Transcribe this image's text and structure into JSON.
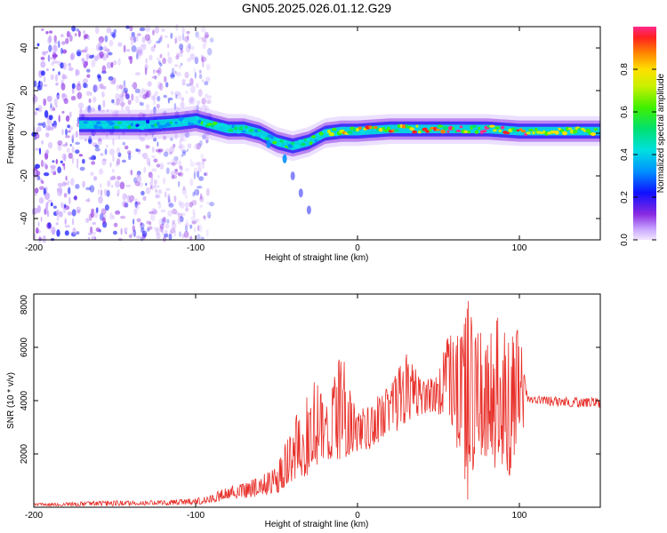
{
  "figure": {
    "title": "GN05.2025.026.01.12.G29"
  },
  "chart_data": [
    {
      "type": "heatmap",
      "xlabel": "Height of straight line (km)",
      "ylabel": "Frequency (Hz)",
      "xlim": [
        -200,
        150
      ],
      "ylim": [
        -50,
        50
      ],
      "xticks": [
        -200,
        -100,
        0,
        100
      ],
      "yticks": [
        -40,
        -20,
        0,
        20,
        40
      ],
      "colorbar": {
        "label": "Normalized spectral amplitude",
        "range": [
          0,
          1
        ],
        "ticks": [
          0.0,
          0.2,
          0.4,
          0.6,
          0.8
        ]
      },
      "ridge": {
        "description_points": [
          {
            "x": -170,
            "y": 4
          },
          {
            "x": -150,
            "y": 4
          },
          {
            "x": -130,
            "y": 4
          },
          {
            "x": -110,
            "y": 5
          },
          {
            "x": -100,
            "y": 6
          },
          {
            "x": -90,
            "y": 4
          },
          {
            "x": -80,
            "y": 2
          },
          {
            "x": -70,
            "y": 2
          },
          {
            "x": -60,
            "y": 0
          },
          {
            "x": -50,
            "y": -4
          },
          {
            "x": -40,
            "y": -6
          },
          {
            "x": -30,
            "y": -4
          },
          {
            "x": -20,
            "y": 0
          },
          {
            "x": -10,
            "y": 1
          },
          {
            "x": 0,
            "y": 1
          },
          {
            "x": 20,
            "y": 2
          },
          {
            "x": 40,
            "y": 2
          },
          {
            "x": 60,
            "y": 2
          },
          {
            "x": 80,
            "y": 2
          },
          {
            "x": 100,
            "y": 1
          },
          {
            "x": 150,
            "y": 1
          }
        ]
      },
      "branch": [
        {
          "x": -55,
          "y": -5
        },
        {
          "x": -45,
          "y": -12
        },
        {
          "x": -40,
          "y": -20
        },
        {
          "x": -35,
          "y": -28
        },
        {
          "x": -30,
          "y": -36
        }
      ],
      "noisy_region": {
        "xmin": -200,
        "xmax": -90
      }
    },
    {
      "type": "line",
      "xlabel": "Height of straight line (km)",
      "ylabel": "SNR (10 * v/v)",
      "xlim": [
        -200,
        150
      ],
      "ylim": [
        0,
        8000
      ],
      "xticks": [
        -200,
        -100,
        0,
        100
      ],
      "yticks": [
        2000,
        4000,
        6000,
        8000
      ],
      "color": "#e8302a",
      "envelope": [
        {
          "x": -200,
          "lo": 50,
          "hi": 150
        },
        {
          "x": -150,
          "lo": 50,
          "hi": 250
        },
        {
          "x": -120,
          "lo": 80,
          "hi": 250
        },
        {
          "x": -100,
          "lo": 100,
          "hi": 350
        },
        {
          "x": -90,
          "lo": 150,
          "hi": 500
        },
        {
          "x": -80,
          "lo": 300,
          "hi": 800
        },
        {
          "x": -70,
          "lo": 350,
          "hi": 900
        },
        {
          "x": -60,
          "lo": 400,
          "hi": 1200
        },
        {
          "x": -50,
          "lo": 500,
          "hi": 1500
        },
        {
          "x": -40,
          "lo": 1000,
          "hi": 3200
        },
        {
          "x": -30,
          "lo": 1200,
          "hi": 4500
        },
        {
          "x": -25,
          "lo": 1500,
          "hi": 5200
        },
        {
          "x": -20,
          "lo": 1600,
          "hi": 3600
        },
        {
          "x": -10,
          "lo": 1800,
          "hi": 6000
        },
        {
          "x": 0,
          "lo": 2000,
          "hi": 3500
        },
        {
          "x": 10,
          "lo": 2200,
          "hi": 4200
        },
        {
          "x": 20,
          "lo": 2600,
          "hi": 4500
        },
        {
          "x": 30,
          "lo": 3200,
          "hi": 5800
        },
        {
          "x": 40,
          "lo": 3400,
          "hi": 4800
        },
        {
          "x": 50,
          "lo": 3500,
          "hi": 5000
        },
        {
          "x": 55,
          "lo": 3000,
          "hi": 6400
        },
        {
          "x": 60,
          "lo": 2500,
          "hi": 6800
        },
        {
          "x": 65,
          "lo": 1500,
          "hi": 6600
        },
        {
          "x": 68,
          "lo": 200,
          "hi": 7900
        },
        {
          "x": 72,
          "lo": 1500,
          "hi": 6800
        },
        {
          "x": 80,
          "lo": 1800,
          "hi": 6300
        },
        {
          "x": 88,
          "lo": 1200,
          "hi": 7300
        },
        {
          "x": 95,
          "lo": 1000,
          "hi": 6500
        },
        {
          "x": 100,
          "lo": 1500,
          "hi": 6700
        },
        {
          "x": 105,
          "lo": 3900,
          "hi": 4200
        },
        {
          "x": 120,
          "lo": 3800,
          "hi": 4150
        },
        {
          "x": 150,
          "lo": 3700,
          "hi": 4100
        }
      ]
    }
  ]
}
